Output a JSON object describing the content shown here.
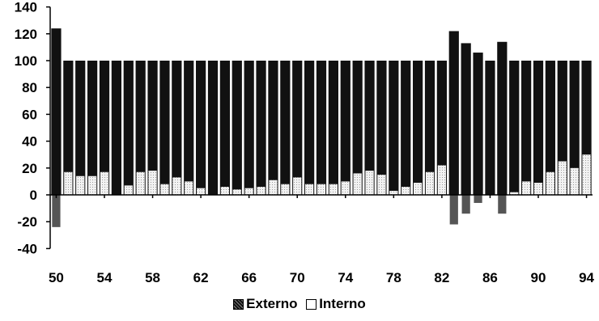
{
  "chart_data": {
    "type": "bar",
    "categories": [
      "50",
      "51",
      "52",
      "53",
      "54",
      "55",
      "56",
      "57",
      "58",
      "59",
      "60",
      "61",
      "62",
      "63",
      "64",
      "65",
      "66",
      "67",
      "68",
      "69",
      "70",
      "71",
      "72",
      "73",
      "74",
      "75",
      "76",
      "77",
      "78",
      "79",
      "80",
      "81",
      "82",
      "83",
      "84",
      "85",
      "86",
      "87",
      "88",
      "89",
      "90",
      "91",
      "92",
      "93",
      "94"
    ],
    "x_tick_labels": [
      "50",
      "54",
      "58",
      "62",
      "66",
      "70",
      "74",
      "78",
      "82",
      "86",
      "90",
      "94"
    ],
    "series": [
      {
        "name": "Externo",
        "values": [
          124,
          100,
          100,
          100,
          100,
          100,
          100,
          100,
          100,
          100,
          100,
          100,
          100,
          100,
          100,
          100,
          100,
          100,
          100,
          100,
          100,
          100,
          100,
          100,
          100,
          100,
          100,
          100,
          100,
          100,
          100,
          100,
          100,
          122,
          113,
          106,
          100,
          114,
          100,
          100,
          100,
          100,
          100,
          100,
          100
        ]
      },
      {
        "name": "Interno",
        "values": [
          -24,
          17,
          14,
          14,
          17,
          0,
          7,
          17,
          18,
          8,
          13,
          10,
          5,
          0,
          6,
          4,
          5,
          6,
          11,
          8,
          13,
          8,
          8,
          8,
          10,
          16,
          18,
          15,
          3,
          6,
          9,
          17,
          22,
          -22,
          -14,
          -6,
          0,
          -14,
          2,
          10,
          9,
          17,
          25,
          20,
          30
        ]
      }
    ],
    "ylim": [
      -40,
      140
    ],
    "y_ticks": [
      -40,
      -20,
      0,
      20,
      40,
      60,
      80,
      100,
      120,
      140
    ],
    "legend": {
      "position": "bottom",
      "entries": [
        "Externo",
        "Interno"
      ]
    },
    "colors": {
      "externo": "#111111",
      "interno": "#e8e8e8"
    },
    "grid": false,
    "title": "",
    "xlabel": "",
    "ylabel": ""
  }
}
